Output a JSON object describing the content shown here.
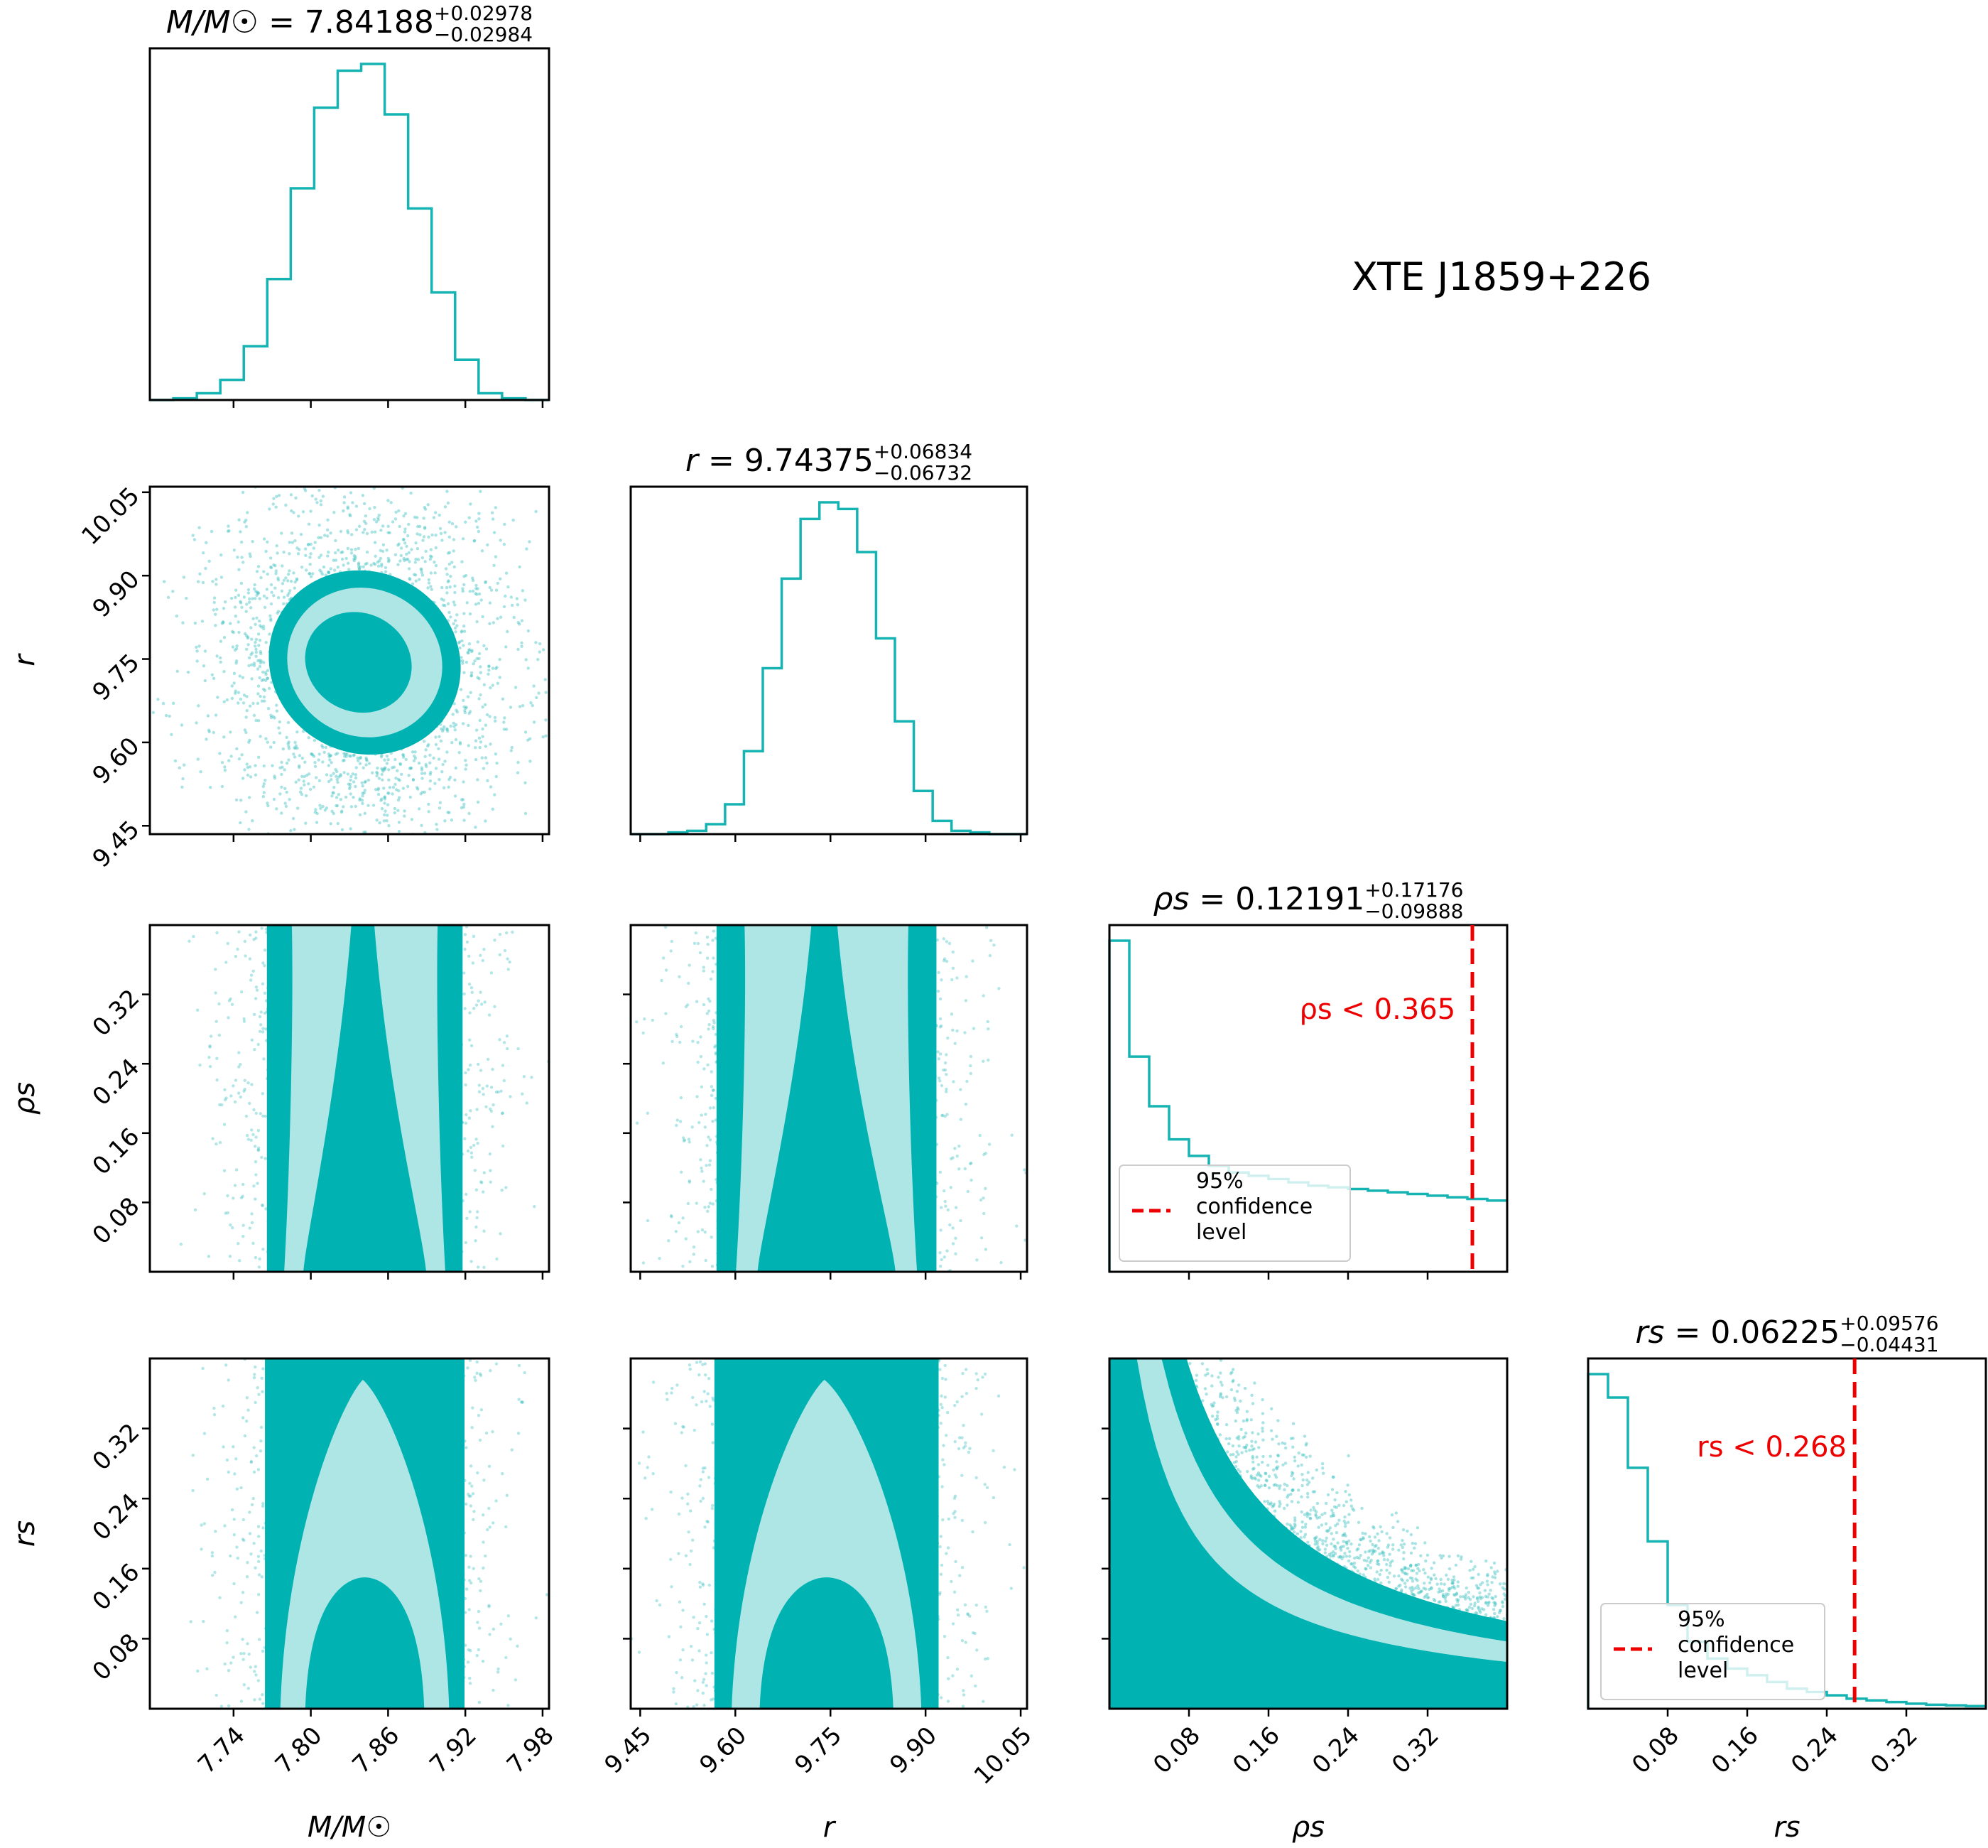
{
  "figure_title": "XTE J1859+226",
  "colors": {
    "histogram": "#16b3b3",
    "dense": "#00b2b2",
    "light": "#aee6e6",
    "points": "#40c0c0",
    "limit_line": "#ee0000",
    "frame": "#000000"
  },
  "chart_data": {
    "type": "corner",
    "parameters": [
      {
        "label": "M/M☉",
        "title": {
          "lhs": "M/M☉",
          "median": "7.84188",
          "plus": "+0.02978",
          "minus": "−0.02984"
        },
        "range": [
          7.675,
          7.985
        ],
        "ticks": [
          7.74,
          7.8,
          7.86,
          7.92,
          7.98
        ],
        "tick_labels": [
          "7.74",
          "7.80",
          "7.86",
          "7.92",
          "7.98"
        ],
        "hist_counts": [
          0.0,
          0.005,
          0.02,
          0.06,
          0.16,
          0.36,
          0.63,
          0.87,
          0.98,
          1.0,
          0.85,
          0.57,
          0.32,
          0.12,
          0.02,
          0.005,
          0.0
        ]
      },
      {
        "label": "r",
        "title": {
          "lhs": "r",
          "median": "9.74375",
          "plus": "+0.06834",
          "minus": "−0.06732"
        },
        "range": [
          9.435,
          10.06
        ],
        "ticks": [
          9.45,
          9.6,
          9.75,
          9.9,
          10.05
        ],
        "tick_labels": [
          "9.45",
          "9.60",
          "9.75",
          "9.90",
          "10.05"
        ],
        "hist_counts": [
          0.0,
          0.0,
          0.005,
          0.01,
          0.03,
          0.09,
          0.25,
          0.5,
          0.77,
          0.95,
          1.0,
          0.98,
          0.85,
          0.59,
          0.34,
          0.13,
          0.04,
          0.01,
          0.005,
          0.0,
          0.0
        ]
      },
      {
        "label": "ρs",
        "title": {
          "lhs": "ρs",
          "median": "0.12191",
          "plus": "+0.17176",
          "minus": "−0.09888"
        },
        "range": [
          0.0,
          0.4
        ],
        "ticks": [
          0.08,
          0.16,
          0.24,
          0.32
        ],
        "tick_labels": [
          "0.08",
          "0.16",
          "0.24",
          "0.32"
        ],
        "hist_counts": [
          1.0,
          0.65,
          0.5,
          0.4,
          0.35,
          0.32,
          0.3,
          0.29,
          0.28,
          0.27,
          0.26,
          0.255,
          0.25,
          0.245,
          0.24,
          0.235,
          0.23,
          0.225,
          0.22,
          0.215
        ],
        "upper_limit": {
          "value": 0.365,
          "annotation": "ρs < 0.365"
        }
      },
      {
        "label": "rs",
        "title": {
          "lhs": "rs",
          "median": "0.06225",
          "plus": "+0.09576",
          "minus": "−0.04431"
        },
        "range": [
          0.0,
          0.4
        ],
        "ticks": [
          0.08,
          0.16,
          0.24,
          0.32
        ],
        "tick_labels": [
          "0.08",
          "0.16",
          "0.24",
          "0.32"
        ],
        "hist_counts": [
          1.0,
          0.93,
          0.72,
          0.5,
          0.31,
          0.2,
          0.15,
          0.12,
          0.1,
          0.08,
          0.06,
          0.05,
          0.04,
          0.03,
          0.025,
          0.02,
          0.015,
          0.012,
          0.01,
          0.008
        ],
        "upper_limit": {
          "value": 0.268,
          "annotation": "rs < 0.268"
        }
      }
    ],
    "legend": {
      "entry": "95% confidence level",
      "lines": [
        "95%",
        "confidence",
        "level"
      ]
    }
  }
}
